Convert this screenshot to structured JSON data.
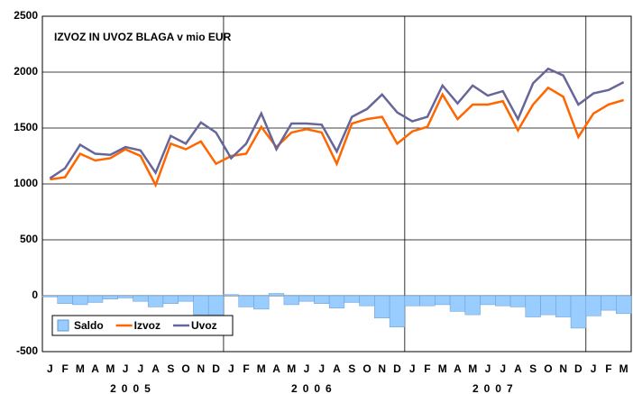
{
  "chart_data": {
    "type": "combo",
    "title": "IZVOZ IN UVOZ BLAGA v mio EUR",
    "categories": [
      "J",
      "F",
      "M",
      "A",
      "M",
      "J",
      "J",
      "A",
      "S",
      "O",
      "N",
      "D",
      "J",
      "F",
      "M",
      "A",
      "M",
      "J",
      "J",
      "A",
      "S",
      "O",
      "N",
      "D",
      "J",
      "F",
      "M",
      "A",
      "M",
      "J",
      "J",
      "A",
      "S",
      "O",
      "N",
      "D",
      "J",
      "F",
      "M"
    ],
    "year_labels": [
      "2005",
      "2006",
      "2007"
    ],
    "series": [
      {
        "name": "Saldo",
        "kind": "bar",
        "color": "#99ccff",
        "values": [
          -10,
          -70,
          -80,
          -60,
          -30,
          -20,
          -50,
          -100,
          -70,
          -50,
          -170,
          -170,
          10,
          -100,
          -120,
          20,
          -80,
          -50,
          -70,
          -110,
          -60,
          -90,
          -200,
          -280,
          -90,
          -90,
          -80,
          -140,
          -170,
          -80,
          -90,
          -100,
          -190,
          -170,
          -190,
          -290,
          -180,
          -130,
          -160
        ]
      },
      {
        "name": "Izvoz",
        "kind": "line",
        "color": "#ff6600",
        "values": [
          1040,
          1060,
          1270,
          1210,
          1230,
          1310,
          1250,
          990,
          1360,
          1310,
          1380,
          1180,
          1250,
          1270,
          1510,
          1330,
          1460,
          1490,
          1460,
          1180,
          1540,
          1580,
          1600,
          1360,
          1470,
          1510,
          1800,
          1580,
          1710,
          1710,
          1740,
          1480,
          1710,
          1860,
          1780,
          1420,
          1630,
          1710,
          1750
        ]
      },
      {
        "name": "Uvoz",
        "kind": "line",
        "color": "#666699",
        "values": [
          1050,
          1140,
          1350,
          1270,
          1260,
          1330,
          1300,
          1100,
          1430,
          1360,
          1550,
          1460,
          1230,
          1360,
          1630,
          1310,
          1540,
          1540,
          1530,
          1290,
          1600,
          1670,
          1800,
          1640,
          1560,
          1600,
          1880,
          1720,
          1880,
          1790,
          1830,
          1580,
          1900,
          2030,
          1970,
          1710,
          1810,
          1840,
          1910
        ]
      }
    ],
    "ylim": [
      -500,
      2500
    ],
    "yticks": [
      -500,
      0,
      500,
      1000,
      1500,
      2000,
      2500
    ],
    "grid": true,
    "legend": "lower left"
  }
}
